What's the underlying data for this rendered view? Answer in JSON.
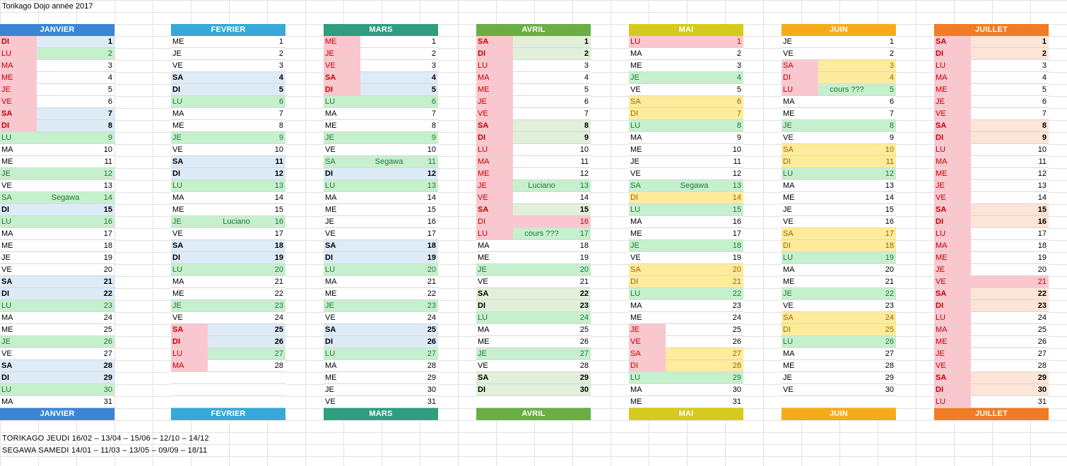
{
  "title": "Torikago Dojo année 2017",
  "palette": {
    "red_bg": "#fbc7cf",
    "red_text": "#c00000",
    "green_bg": "#c6efce",
    "green_text": "#1e7a34",
    "blue_bg": "#ddebf7",
    "yellow_bg": "#ffeb9c",
    "yellow_text": "#9c6500",
    "peach_bg": "#fce4d6",
    "lightgreen_bg": "#e2efda"
  },
  "months": [
    {
      "name": "JANVIER",
      "color": "#3a86d4",
      "days": [
        {
          "d": "DI",
          "n": 1,
          "style": "red-blue",
          "bold": true
        },
        {
          "d": "LU",
          "n": 2,
          "style": "red-green"
        },
        {
          "d": "MA",
          "n": 3,
          "style": "red"
        },
        {
          "d": "ME",
          "n": 4,
          "style": "red"
        },
        {
          "d": "JE",
          "n": 5,
          "style": "red"
        },
        {
          "d": "VE",
          "n": 6,
          "style": "red"
        },
        {
          "d": "SA",
          "n": 7,
          "style": "red-blue",
          "bold": true
        },
        {
          "d": "DI",
          "n": 8,
          "style": "red-blue",
          "bold": true
        },
        {
          "d": "LU",
          "n": 9,
          "style": "green"
        },
        {
          "d": "MA",
          "n": 10
        },
        {
          "d": "ME",
          "n": 11
        },
        {
          "d": "JE",
          "n": 12,
          "style": "green"
        },
        {
          "d": "VE",
          "n": 13
        },
        {
          "d": "SA",
          "n": 14,
          "style": "green",
          "note": "Segawa"
        },
        {
          "d": "DI",
          "n": 15,
          "style": "blue",
          "bold": true
        },
        {
          "d": "LU",
          "n": 16,
          "style": "green"
        },
        {
          "d": "MA",
          "n": 17
        },
        {
          "d": "ME",
          "n": 18
        },
        {
          "d": "JE",
          "n": 19
        },
        {
          "d": "VE",
          "n": 20
        },
        {
          "d": "SA",
          "n": 21,
          "style": "blue",
          "bold": true
        },
        {
          "d": "DI",
          "n": 22,
          "style": "blue",
          "bold": true
        },
        {
          "d": "LU",
          "n": 23,
          "style": "green"
        },
        {
          "d": "MA",
          "n": 24
        },
        {
          "d": "ME",
          "n": 25
        },
        {
          "d": "JE",
          "n": 26,
          "style": "green"
        },
        {
          "d": "VE",
          "n": 27
        },
        {
          "d": "SA",
          "n": 28,
          "style": "blue",
          "bold": true
        },
        {
          "d": "DI",
          "n": 29,
          "style": "blue",
          "bold": true
        },
        {
          "d": "LU",
          "n": 30,
          "style": "green"
        },
        {
          "d": "MA",
          "n": 31
        }
      ]
    },
    {
      "name": "FEVRIER",
      "color": "#37a8d9",
      "days": [
        {
          "d": "ME",
          "n": 1
        },
        {
          "d": "JE",
          "n": 2
        },
        {
          "d": "VE",
          "n": 3
        },
        {
          "d": "SA",
          "n": 4,
          "style": "blue",
          "bold": true
        },
        {
          "d": "DI",
          "n": 5,
          "style": "blue",
          "bold": true
        },
        {
          "d": "LU",
          "n": 6,
          "style": "green"
        },
        {
          "d": "MA",
          "n": 7
        },
        {
          "d": "ME",
          "n": 8
        },
        {
          "d": "JE",
          "n": 9,
          "style": "green"
        },
        {
          "d": "VE",
          "n": 10
        },
        {
          "d": "SA",
          "n": 11,
          "style": "blue",
          "bold": true
        },
        {
          "d": "DI",
          "n": 12,
          "style": "blue",
          "bold": true
        },
        {
          "d": "LU",
          "n": 13,
          "style": "green"
        },
        {
          "d": "MA",
          "n": 14
        },
        {
          "d": "ME",
          "n": 15
        },
        {
          "d": "JE",
          "n": 16,
          "style": "green",
          "note": "Luciano"
        },
        {
          "d": "VE",
          "n": 17
        },
        {
          "d": "SA",
          "n": 18,
          "style": "blue",
          "bold": true
        },
        {
          "d": "DI",
          "n": 19,
          "style": "blue",
          "bold": true
        },
        {
          "d": "LU",
          "n": 20,
          "style": "green"
        },
        {
          "d": "MA",
          "n": 21
        },
        {
          "d": "ME",
          "n": 22
        },
        {
          "d": "JE",
          "n": 23,
          "style": "green"
        },
        {
          "d": "VE",
          "n": 24
        },
        {
          "d": "SA",
          "n": 25,
          "style": "red-blue",
          "bold": true
        },
        {
          "d": "DI",
          "n": 26,
          "style": "red-blue",
          "bold": true
        },
        {
          "d": "LU",
          "n": 27,
          "style": "red-green"
        },
        {
          "d": "MA",
          "n": 28,
          "style": "red"
        }
      ]
    },
    {
      "name": "MARS",
      "color": "#2f9e7f",
      "days": [
        {
          "d": "ME",
          "n": 1,
          "style": "red"
        },
        {
          "d": "JE",
          "n": 2,
          "style": "red"
        },
        {
          "d": "VE",
          "n": 3,
          "style": "red"
        },
        {
          "d": "SA",
          "n": 4,
          "style": "red-blue",
          "bold": true
        },
        {
          "d": "DI",
          "n": 5,
          "style": "red-blue",
          "bold": true
        },
        {
          "d": "LU",
          "n": 6,
          "style": "green"
        },
        {
          "d": "MA",
          "n": 7
        },
        {
          "d": "ME",
          "n": 8
        },
        {
          "d": "JE",
          "n": 9,
          "style": "green"
        },
        {
          "d": "VE",
          "n": 10
        },
        {
          "d": "SA",
          "n": 11,
          "style": "green",
          "note": "Segawa"
        },
        {
          "d": "DI",
          "n": 12,
          "style": "blue",
          "bold": true
        },
        {
          "d": "LU",
          "n": 13,
          "style": "green"
        },
        {
          "d": "MA",
          "n": 14
        },
        {
          "d": "ME",
          "n": 15
        },
        {
          "d": "JE",
          "n": 16
        },
        {
          "d": "VE",
          "n": 17
        },
        {
          "d": "SA",
          "n": 18,
          "style": "blue",
          "bold": true
        },
        {
          "d": "DI",
          "n": 19,
          "style": "blue",
          "bold": true
        },
        {
          "d": "LU",
          "n": 20,
          "style": "green"
        },
        {
          "d": "MA",
          "n": 21
        },
        {
          "d": "ME",
          "n": 22
        },
        {
          "d": "JE",
          "n": 23,
          "style": "green"
        },
        {
          "d": "VE",
          "n": 24
        },
        {
          "d": "SA",
          "n": 25,
          "style": "blue",
          "bold": true
        },
        {
          "d": "DI",
          "n": 26,
          "style": "blue",
          "bold": true
        },
        {
          "d": "LU",
          "n": 27,
          "style": "green"
        },
        {
          "d": "MA",
          "n": 28
        },
        {
          "d": "ME",
          "n": 29
        },
        {
          "d": "JE",
          "n": 30
        },
        {
          "d": "VE",
          "n": 31
        }
      ]
    },
    {
      "name": "AVRIL",
      "color": "#6aae45",
      "days": [
        {
          "d": "SA",
          "n": 1,
          "style": "red-lgreen",
          "bold": true
        },
        {
          "d": "DI",
          "n": 2,
          "style": "red-lgreen",
          "bold": true
        },
        {
          "d": "LU",
          "n": 3,
          "style": "red"
        },
        {
          "d": "MA",
          "n": 4,
          "style": "red"
        },
        {
          "d": "ME",
          "n": 5,
          "style": "red"
        },
        {
          "d": "JE",
          "n": 6,
          "style": "red"
        },
        {
          "d": "VE",
          "n": 7,
          "style": "red"
        },
        {
          "d": "SA",
          "n": 8,
          "style": "red-lgreen",
          "bold": true
        },
        {
          "d": "DI",
          "n": 9,
          "style": "red-lgreen",
          "bold": true
        },
        {
          "d": "LU",
          "n": 10,
          "style": "red"
        },
        {
          "d": "MA",
          "n": 11,
          "style": "red"
        },
        {
          "d": "ME",
          "n": 12,
          "style": "red"
        },
        {
          "d": "JE",
          "n": 13,
          "style": "red-green",
          "note": "Luciano"
        },
        {
          "d": "VE",
          "n": 14,
          "style": "red"
        },
        {
          "d": "SA",
          "n": 15,
          "style": "red-lgreen",
          "bold": true
        },
        {
          "d": "DI",
          "n": 16,
          "style": "redfull"
        },
        {
          "d": "LU",
          "n": 17,
          "style": "red-green",
          "note": "cours ???"
        },
        {
          "d": "MA",
          "n": 18
        },
        {
          "d": "ME",
          "n": 19
        },
        {
          "d": "JE",
          "n": 20,
          "style": "green"
        },
        {
          "d": "VE",
          "n": 21
        },
        {
          "d": "SA",
          "n": 22,
          "style": "lgreen",
          "bold": true
        },
        {
          "d": "DI",
          "n": 23,
          "style": "lgreen",
          "bold": true
        },
        {
          "d": "LU",
          "n": 24,
          "style": "green"
        },
        {
          "d": "MA",
          "n": 25
        },
        {
          "d": "ME",
          "n": 26
        },
        {
          "d": "JE",
          "n": 27,
          "style": "green"
        },
        {
          "d": "VE",
          "n": 28
        },
        {
          "d": "SA",
          "n": 29,
          "style": "lgreen",
          "bold": true
        },
        {
          "d": "DI",
          "n": 30,
          "style": "lgreen",
          "bold": true
        }
      ]
    },
    {
      "name": "MAI",
      "color": "#d5cb1e",
      "days": [
        {
          "d": "LU",
          "n": 1,
          "style": "redfull"
        },
        {
          "d": "MA",
          "n": 2
        },
        {
          "d": "ME",
          "n": 3
        },
        {
          "d": "JE",
          "n": 4,
          "style": "green"
        },
        {
          "d": "VE",
          "n": 5
        },
        {
          "d": "SA",
          "n": 6,
          "style": "yellow"
        },
        {
          "d": "DI",
          "n": 7,
          "style": "yellow"
        },
        {
          "d": "LU",
          "n": 8,
          "style": "green"
        },
        {
          "d": "MA",
          "n": 9
        },
        {
          "d": "ME",
          "n": 10
        },
        {
          "d": "JE",
          "n": 11
        },
        {
          "d": "VE",
          "n": 12
        },
        {
          "d": "SA",
          "n": 13,
          "style": "green",
          "note": "Segawa"
        },
        {
          "d": "DI",
          "n": 14,
          "style": "yellow"
        },
        {
          "d": "LU",
          "n": 15,
          "style": "green"
        },
        {
          "d": "MA",
          "n": 16
        },
        {
          "d": "ME",
          "n": 17
        },
        {
          "d": "JE",
          "n": 18,
          "style": "green"
        },
        {
          "d": "VE",
          "n": 19
        },
        {
          "d": "SA",
          "n": 20,
          "style": "yellow"
        },
        {
          "d": "DI",
          "n": 21,
          "style": "yellow"
        },
        {
          "d": "LU",
          "n": 22,
          "style": "green"
        },
        {
          "d": "MA",
          "n": 23
        },
        {
          "d": "ME",
          "n": 24
        },
        {
          "d": "JE",
          "n": 25,
          "style": "red"
        },
        {
          "d": "VE",
          "n": 26,
          "style": "red"
        },
        {
          "d": "SA",
          "n": 27,
          "style": "red-yellow"
        },
        {
          "d": "DI",
          "n": 28,
          "style": "red-yellow"
        },
        {
          "d": "LU",
          "n": 29,
          "style": "green"
        },
        {
          "d": "MA",
          "n": 30
        },
        {
          "d": "ME",
          "n": 31
        }
      ]
    },
    {
      "name": "JUIN",
      "color": "#f7ab1b",
      "days": [
        {
          "d": "JE",
          "n": 1
        },
        {
          "d": "VE",
          "n": 2
        },
        {
          "d": "SA",
          "n": 3,
          "style": "red-yellow"
        },
        {
          "d": "DI",
          "n": 4,
          "style": "red-yellow"
        },
        {
          "d": "LU",
          "n": 5,
          "style": "red-green",
          "note": "cours ???"
        },
        {
          "d": "MA",
          "n": 6
        },
        {
          "d": "ME",
          "n": 7
        },
        {
          "d": "JE",
          "n": 8,
          "style": "green"
        },
        {
          "d": "VE",
          "n": 9
        },
        {
          "d": "SA",
          "n": 10,
          "style": "yellow"
        },
        {
          "d": "DI",
          "n": 11,
          "style": "yellow"
        },
        {
          "d": "LU",
          "n": 12,
          "style": "green"
        },
        {
          "d": "MA",
          "n": 13
        },
        {
          "d": "ME",
          "n": 14
        },
        {
          "d": "JE",
          "n": 15
        },
        {
          "d": "VE",
          "n": 16
        },
        {
          "d": "SA",
          "n": 17,
          "style": "yellow"
        },
        {
          "d": "DI",
          "n": 18,
          "style": "yellow"
        },
        {
          "d": "LU",
          "n": 19,
          "style": "green"
        },
        {
          "d": "MA",
          "n": 20
        },
        {
          "d": "ME",
          "n": 21
        },
        {
          "d": "JE",
          "n": 22,
          "style": "green"
        },
        {
          "d": "VE",
          "n": 23
        },
        {
          "d": "SA",
          "n": 24,
          "style": "yellow"
        },
        {
          "d": "DI",
          "n": 25,
          "style": "yellow"
        },
        {
          "d": "LU",
          "n": 26,
          "style": "green"
        },
        {
          "d": "MA",
          "n": 27
        },
        {
          "d": "ME",
          "n": 28
        },
        {
          "d": "JE",
          "n": 29
        },
        {
          "d": "VE",
          "n": 30
        }
      ]
    },
    {
      "name": "JUILLET",
      "color": "#f07c26",
      "days": [
        {
          "d": "SA",
          "n": 1,
          "style": "red-peach",
          "bold": true
        },
        {
          "d": "DI",
          "n": 2,
          "style": "red-peach",
          "bold": true
        },
        {
          "d": "LU",
          "n": 3,
          "style": "red"
        },
        {
          "d": "MA",
          "n": 4,
          "style": "red"
        },
        {
          "d": "ME",
          "n": 5,
          "style": "red"
        },
        {
          "d": "JE",
          "n": 6,
          "style": "red"
        },
        {
          "d": "VE",
          "n": 7,
          "style": "red"
        },
        {
          "d": "SA",
          "n": 8,
          "style": "red-peach",
          "bold": true
        },
        {
          "d": "DI",
          "n": 9,
          "style": "red-peach",
          "bold": true
        },
        {
          "d": "LU",
          "n": 10,
          "style": "red"
        },
        {
          "d": "MA",
          "n": 11,
          "style": "red"
        },
        {
          "d": "ME",
          "n": 12,
          "style": "red"
        },
        {
          "d": "JE",
          "n": 13,
          "style": "red"
        },
        {
          "d": "VE",
          "n": 14,
          "style": "red"
        },
        {
          "d": "SA",
          "n": 15,
          "style": "red-peach",
          "bold": true
        },
        {
          "d": "DI",
          "n": 16,
          "style": "red-peach",
          "bold": true
        },
        {
          "d": "LU",
          "n": 17,
          "style": "red"
        },
        {
          "d": "MA",
          "n": 18,
          "style": "red"
        },
        {
          "d": "ME",
          "n": 19,
          "style": "red"
        },
        {
          "d": "JE",
          "n": 20,
          "style": "red"
        },
        {
          "d": "VE",
          "n": 21,
          "style": "redfull"
        },
        {
          "d": "SA",
          "n": 22,
          "style": "red-peach",
          "bold": true
        },
        {
          "d": "DI",
          "n": 23,
          "style": "red-peach",
          "bold": true
        },
        {
          "d": "LU",
          "n": 24,
          "style": "red"
        },
        {
          "d": "MA",
          "n": 25,
          "style": "red"
        },
        {
          "d": "ME",
          "n": 26,
          "style": "red"
        },
        {
          "d": "JE",
          "n": 27,
          "style": "red"
        },
        {
          "d": "VE",
          "n": 28,
          "style": "red"
        },
        {
          "d": "SA",
          "n": 29,
          "style": "red-peach",
          "bold": true
        },
        {
          "d": "DI",
          "n": 30,
          "style": "red-peach",
          "bold": true
        },
        {
          "d": "LU",
          "n": 31,
          "style": "red"
        }
      ]
    }
  ],
  "notes": [
    "TORIKAGO JEUDI 16/02 – 13/04 – 15/06 – 12/10 – 14/12",
    "SEGAWA SAMEDI  14/01 – 11/03 – 13/05 – 09/09 – 18/11"
  ]
}
